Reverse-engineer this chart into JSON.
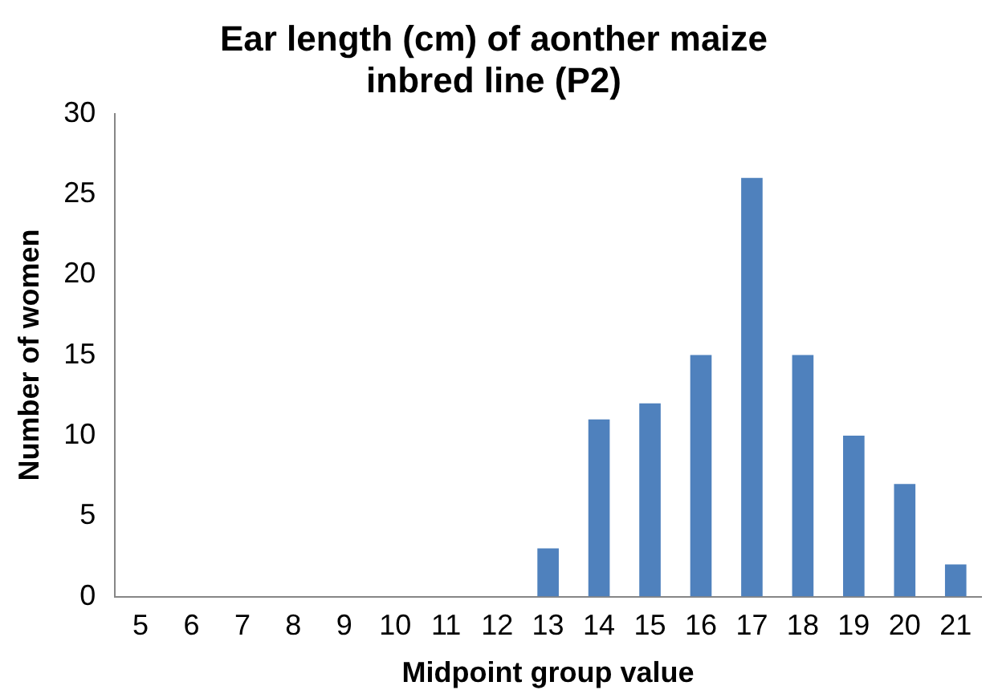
{
  "chart_data": {
    "type": "bar",
    "title": [
      "Ear length (cm) of aonther maize",
      "inbred line (P2)"
    ],
    "xlabel": "Midpoint group value",
    "ylabel": "Number of women",
    "categories": [
      "5",
      "6",
      "7",
      "8",
      "9",
      "10",
      "11",
      "12",
      "13",
      "14",
      "15",
      "16",
      "17",
      "18",
      "19",
      "20",
      "21"
    ],
    "values": [
      0,
      0,
      0,
      0,
      0,
      0,
      0,
      0,
      3,
      11,
      12,
      15,
      26,
      15,
      10,
      7,
      2
    ],
    "color": "#4f81bd",
    "ylim": [
      0,
      30
    ],
    "yticks": [
      0,
      5,
      10,
      15,
      20,
      25,
      30
    ],
    "grid": false,
    "legend": false
  }
}
